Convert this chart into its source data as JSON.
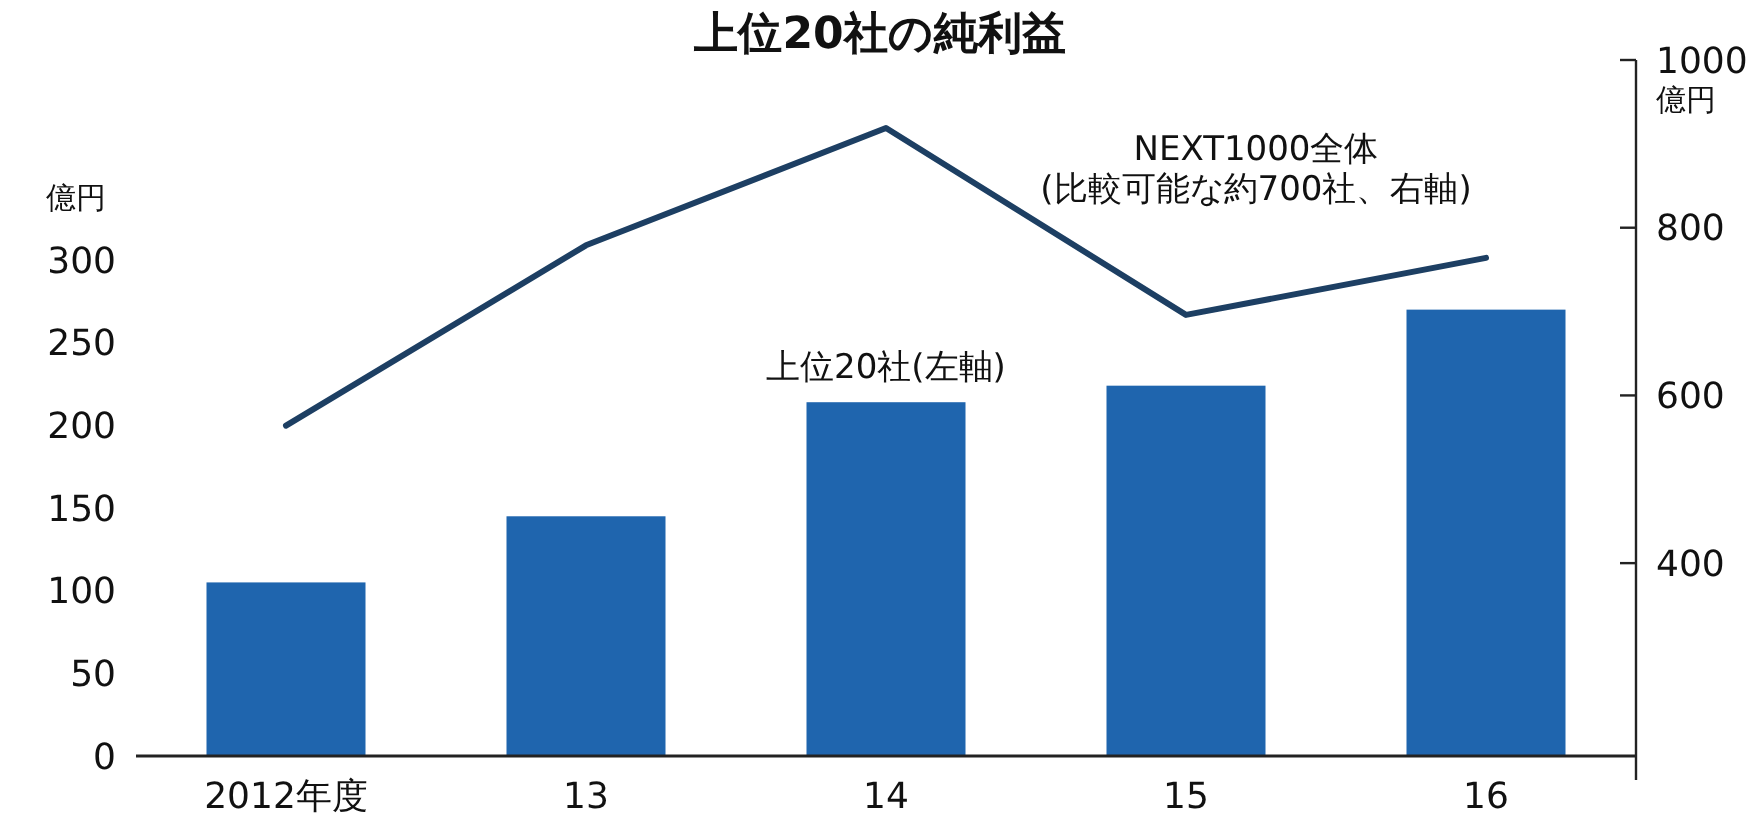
{
  "chart_data": {
    "type": "bar",
    "title": "上位20社の純利益",
    "categories": [
      "2012年度",
      "13",
      "14",
      "15",
      "16"
    ],
    "ylabel": "億円",
    "y2label": "億円",
    "ylim": [
      0,
      421
    ],
    "yticks": [
      0,
      50,
      100,
      150,
      200,
      250,
      300
    ],
    "y2lim": [
      170,
      1000
    ],
    "y2ticks": [
      400,
      600,
      800,
      1000
    ],
    "grid": false,
    "series": [
      {
        "name": "上位20社(左軸)",
        "color": "#1f65ae",
        "values": [
          105,
          145,
          214,
          224,
          270
        ]
      },
      {
        "name": "NEXT1000全体 (比較可能な約700社、右軸)",
        "type": "line",
        "axis": "y2",
        "color": "#1d3f63",
        "values": [
          564,
          779,
          919,
          696,
          764
        ]
      }
    ]
  }
}
